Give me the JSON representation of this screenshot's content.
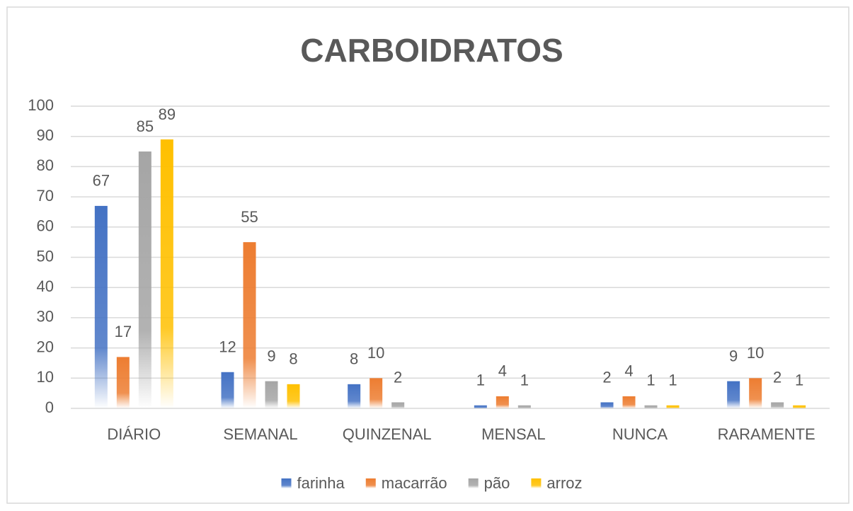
{
  "chart_data": {
    "type": "bar",
    "title": "CARBOIDRATOS",
    "categories": [
      "DIÁRIO",
      "SEMANAL",
      "QUINZENAL",
      "MENSAL",
      "NUNCA",
      "RARAMENTE"
    ],
    "series": [
      {
        "name": "farinha",
        "color": "#4472c4",
        "values": [
          67,
          12,
          8,
          1,
          2,
          9
        ]
      },
      {
        "name": "macarrão",
        "color": "#ed7d31",
        "values": [
          17,
          55,
          10,
          4,
          4,
          10
        ]
      },
      {
        "name": "pão",
        "color": "#a5a5a5",
        "values": [
          85,
          9,
          2,
          1,
          1,
          2
        ]
      },
      {
        "name": "arroz",
        "color": "#ffc000",
        "values": [
          89,
          8,
          null,
          null,
          1,
          1
        ]
      }
    ],
    "ylim": [
      0,
      100
    ],
    "yticks": [
      0,
      10,
      20,
      30,
      40,
      50,
      60,
      70,
      80,
      90,
      100
    ],
    "grid": true,
    "legend": "bottom"
  }
}
